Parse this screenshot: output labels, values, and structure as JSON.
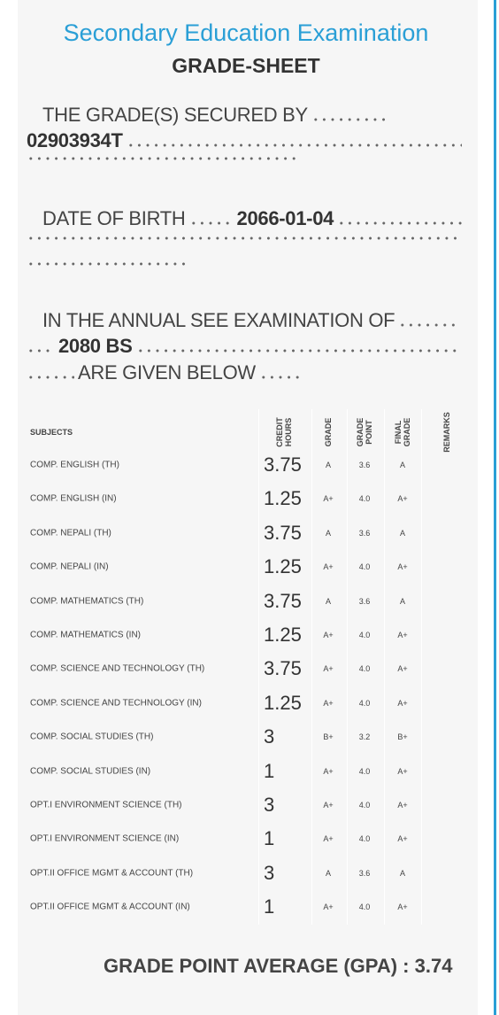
{
  "header": {
    "title": "Secondary Education Examination",
    "subtitle": "GRADE-SHEET"
  },
  "intro": {
    "secured_by_label": "THE GRADE(S) SECURED BY",
    "symbol_no": "02903934T",
    "dob_label": "DATE OF BIRTH",
    "dob": "2066-01-04",
    "exam_label": "IN THE ANNUAL SEE EXAMINATION OF",
    "exam_year": "2080 BS",
    "given_below": "ARE GIVEN BELOW"
  },
  "table": {
    "columns": [
      "SUBJECTS",
      "CREDIT HOURS",
      "GRADE",
      "GRADE POINT",
      "FINAL GRADE",
      "REMARKS"
    ],
    "rows": [
      [
        "COMP. ENGLISH (TH)",
        "3.75",
        "A",
        "3.6",
        "A"
      ],
      [
        "COMP. ENGLISH (IN)",
        "1.25",
        "A+",
        "4.0",
        "A+"
      ],
      [
        "COMP. NEPALI (TH)",
        "3.75",
        "A",
        "3.6",
        "A"
      ],
      [
        "COMP. NEPALI (IN)",
        "1.25",
        "A+",
        "4.0",
        "A+"
      ],
      [
        "COMP. MATHEMATICS (TH)",
        "3.75",
        "A",
        "3.6",
        "A"
      ],
      [
        "COMP. MATHEMATICS (IN)",
        "1.25",
        "A+",
        "4.0",
        "A+"
      ],
      [
        "COMP. SCIENCE AND TECHNOLOGY (TH)",
        "3.75",
        "A+",
        "4.0",
        "A+"
      ],
      [
        "COMP. SCIENCE AND TECHNOLOGY (IN)",
        "1.25",
        "A+",
        "4.0",
        "A+"
      ],
      [
        "COMP. SOCIAL STUDIES (TH)",
        "3",
        "B+",
        "3.2",
        "B+"
      ],
      [
        "COMP. SOCIAL STUDIES (IN)",
        "1",
        "A+",
        "4.0",
        "A+"
      ],
      [
        "OPT.I ENVIRONMENT SCIENCE (TH)",
        "3",
        "A+",
        "4.0",
        "A+"
      ],
      [
        "OPT.I ENVIRONMENT SCIENCE (IN)",
        "1",
        "A+",
        "4.0",
        "A+"
      ],
      [
        "OPT.II OFFICE MGMT & ACCOUNT (TH)",
        "3",
        "A",
        "3.6",
        "A"
      ],
      [
        "OPT.II OFFICE MGMT & ACCOUNT (IN)",
        "1",
        "A+",
        "4.0",
        "A+"
      ]
    ]
  },
  "gpa": {
    "label": "GRADE POINT AVERAGE (GPA) :",
    "value": "3.74"
  }
}
